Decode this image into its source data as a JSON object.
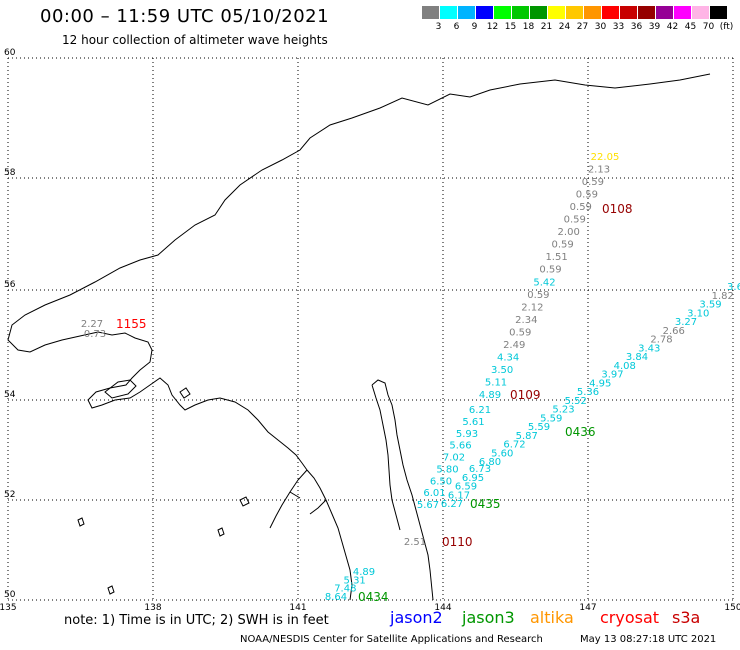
{
  "title": "00:00 – 11:59 UTC 05/10/2021",
  "subtitle": "12 hour collection of altimeter wave heights",
  "scale": {
    "labels": [
      "3",
      "6",
      "9",
      "12",
      "15",
      "18",
      "21",
      "24",
      "27",
      "30",
      "33",
      "36",
      "39",
      "42",
      "45",
      "70",
      "(ft)"
    ],
    "colors": [
      "#808080",
      "#00ffff",
      "#00b4ff",
      "#0000ff",
      "#00ff00",
      "#00c800",
      "#009600",
      "#ffff00",
      "#ffc800",
      "#ff9600",
      "#ff0000",
      "#c80000",
      "#960000",
      "#960096",
      "#ff00ff",
      "#ffb4e6",
      "#000000"
    ]
  },
  "axes": {
    "lon_ticks": [
      "135",
      "138",
      "141",
      "144",
      "147",
      "150"
    ],
    "lat_ticks": [
      "50",
      "52",
      "54",
      "56",
      "58",
      "60"
    ]
  },
  "passes": [
    {
      "id": "0108",
      "color": "#960000",
      "points": [
        "22.05",
        "2.13",
        "0.59",
        "0.59",
        "0.59",
        "0.59",
        "2.00",
        "0.59",
        "1.51",
        "0.59",
        "5.42",
        "0.59",
        "2.12",
        "2.34",
        "0.59",
        "2.49",
        "4.34",
        "3.50",
        "5.11",
        "4.89"
      ]
    },
    {
      "id": "0109",
      "color": "#960000",
      "points": [
        "6.21",
        "5.61",
        "5.93",
        "5.66",
        "7.02",
        "5.80",
        "6.50",
        "6.01",
        "5.67"
      ]
    },
    {
      "id": "0435",
      "color": "#009600",
      "points": [
        "6.27",
        "6.17",
        "6.59",
        "6.95",
        "6.73"
      ]
    },
    {
      "id": "0436",
      "color": "#009600",
      "points": [
        "3.6",
        "1.82",
        "3.59",
        "3.10",
        "3.27",
        "2.66",
        "2.78",
        "3.43",
        "3.84",
        "4.08",
        "3.97",
        "4.95",
        "5.36",
        "5.52",
        "5.23",
        "5.59",
        "5.59",
        "5.87",
        "6.72",
        "5.60",
        "6.80"
      ]
    },
    {
      "id": "0434",
      "color": "#009600",
      "points": [
        "4.89",
        "5.31",
        "7.48",
        "8.64"
      ]
    },
    {
      "id": "0110",
      "color": "#960000",
      "points": [
        "2.51"
      ]
    },
    {
      "id": "1155",
      "color": "#ff0000",
      "points": [
        "2.27",
        "0.73"
      ]
    }
  ],
  "note": "note:  1) Time is in UTC; 2) SWH is in feet",
  "satellites": [
    {
      "name": "jason2",
      "color": "#0000ff"
    },
    {
      "name": "jason3",
      "color": "#009600"
    },
    {
      "name": "altika",
      "color": "#ff9600"
    },
    {
      "name": "cryosat",
      "color": "#ff0000"
    },
    {
      "name": "s3a",
      "color": "#c80000"
    }
  ],
  "credit": "NOAA/NESDIS Center for Satellite Applications and Research",
  "timestamp": "May 13 08:27:18 UTC 2021"
}
